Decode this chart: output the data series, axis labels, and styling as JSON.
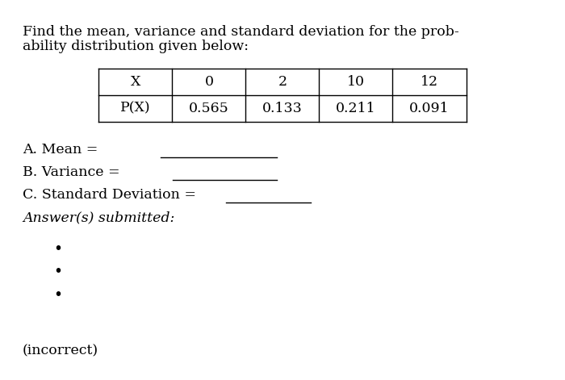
{
  "title_line1": "Find the mean, variance and standard deviation for the prob-",
  "title_line2": "ability distribution given below:",
  "table_headers": [
    "X",
    "0",
    "2",
    "10",
    "12"
  ],
  "table_row2": [
    "P(X)",
    "0.565",
    "0.133",
    "0.211",
    "0.091"
  ],
  "question_a": "A. Mean = ",
  "question_b": "B. Variance = ",
  "question_c": "C. Standard Deviation = ",
  "answers_label": "Answer(s) submitted:",
  "incorrect_label": "(incorrect)",
  "bg_color": "#ffffff",
  "text_color": "#000000",
  "font_size": 12.5
}
